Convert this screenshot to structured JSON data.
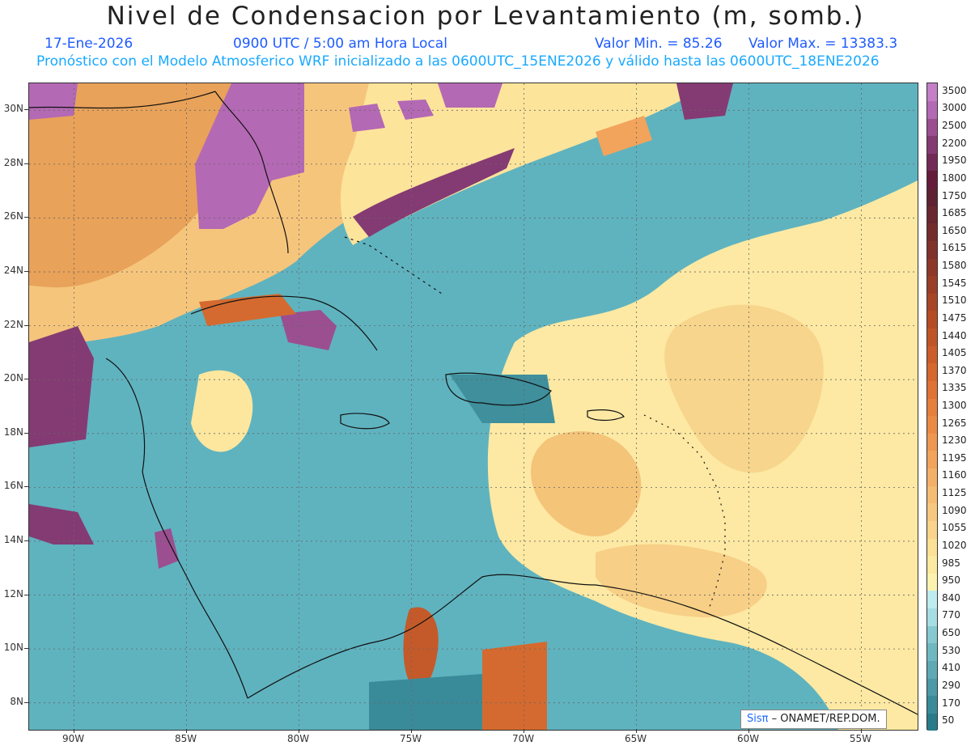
{
  "header": {
    "title": "Nivel de Condensacion por Levantamiento (m, somb.)",
    "date": "17-Ene-2026",
    "time": "0900 UTC / 5:00 am Hora Local",
    "value_min": "Valor Min. = 85.26",
    "value_max": "Valor Max. = 13383.3",
    "model_line": "Pronóstico con el Modelo Atmosferico WRF inicializado a las 0600UTC_15ENE2026 y válido hasta las  0600UTC_18ENE2026"
  },
  "map": {
    "lon_range": [
      -92,
      -52.5
    ],
    "lat_range": [
      7,
      31
    ],
    "lat_labels": [
      "30N",
      "28N",
      "26N",
      "24N",
      "22N",
      "20N",
      "18N",
      "16N",
      "14N",
      "12N",
      "10N",
      "8N"
    ],
    "lat_values": [
      30,
      28,
      26,
      24,
      22,
      20,
      18,
      16,
      14,
      12,
      10,
      8
    ],
    "lon_labels": [
      "90W",
      "85W",
      "80W",
      "75W",
      "70W",
      "65W",
      "60W",
      "55W"
    ],
    "lon_values": [
      -90,
      -85,
      -80,
      -75,
      -70,
      -65,
      -60,
      -55
    ],
    "base_color": "#5fb3bf"
  },
  "colorbar": {
    "levels": [
      50,
      170,
      290,
      410,
      530,
      650,
      770,
      840,
      950,
      985,
      1020,
      1055,
      1090,
      1125,
      1160,
      1195,
      1230,
      1265,
      1300,
      1335,
      1370,
      1405,
      1440,
      1475,
      1510,
      1545,
      1580,
      1615,
      1650,
      1685,
      1750,
      1800,
      1950,
      2200,
      2500,
      3000,
      3500
    ],
    "labels": [
      "50",
      "170",
      "290",
      "410",
      "530",
      "650",
      "770",
      "840",
      "950",
      "985",
      "1020",
      "1055",
      "1090",
      "1125",
      "1160",
      "1195",
      "1230",
      "1265",
      "1300",
      "1335",
      "1370",
      "1405",
      "1440",
      "1475",
      "1510",
      "1545",
      "1580",
      "1615",
      "1650",
      "1685",
      "1750",
      "1800",
      "1950",
      "2200",
      "2500",
      "3000",
      "3500"
    ],
    "colors": [
      "#2a7b8a",
      "#3a8b99",
      "#4c9aa7",
      "#5ea9b4",
      "#70b8c1",
      "#86c9d0",
      "#a6dde2",
      "#bfecef",
      "#fdf3b0",
      "#fceaa0",
      "#fbe095",
      "#f9d48a",
      "#f7c880",
      "#f5bc74",
      "#f4b068",
      "#f2a35c",
      "#ef9750",
      "#eb8a45",
      "#e67e3c",
      "#df7234",
      "#d6672e",
      "#cc5d2a",
      "#c15427",
      "#b54c26",
      "#a84526",
      "#9b3e27",
      "#8e3829",
      "#81322b",
      "#742d2d",
      "#69272f",
      "#5e2233",
      "#651c3a",
      "#722a57",
      "#843b73",
      "#9b4f91",
      "#b469b4",
      "#c47fc6"
    ]
  },
  "credit": {
    "brand": "Sisπ",
    "text": "– ONAMET/REP.DOM."
  }
}
